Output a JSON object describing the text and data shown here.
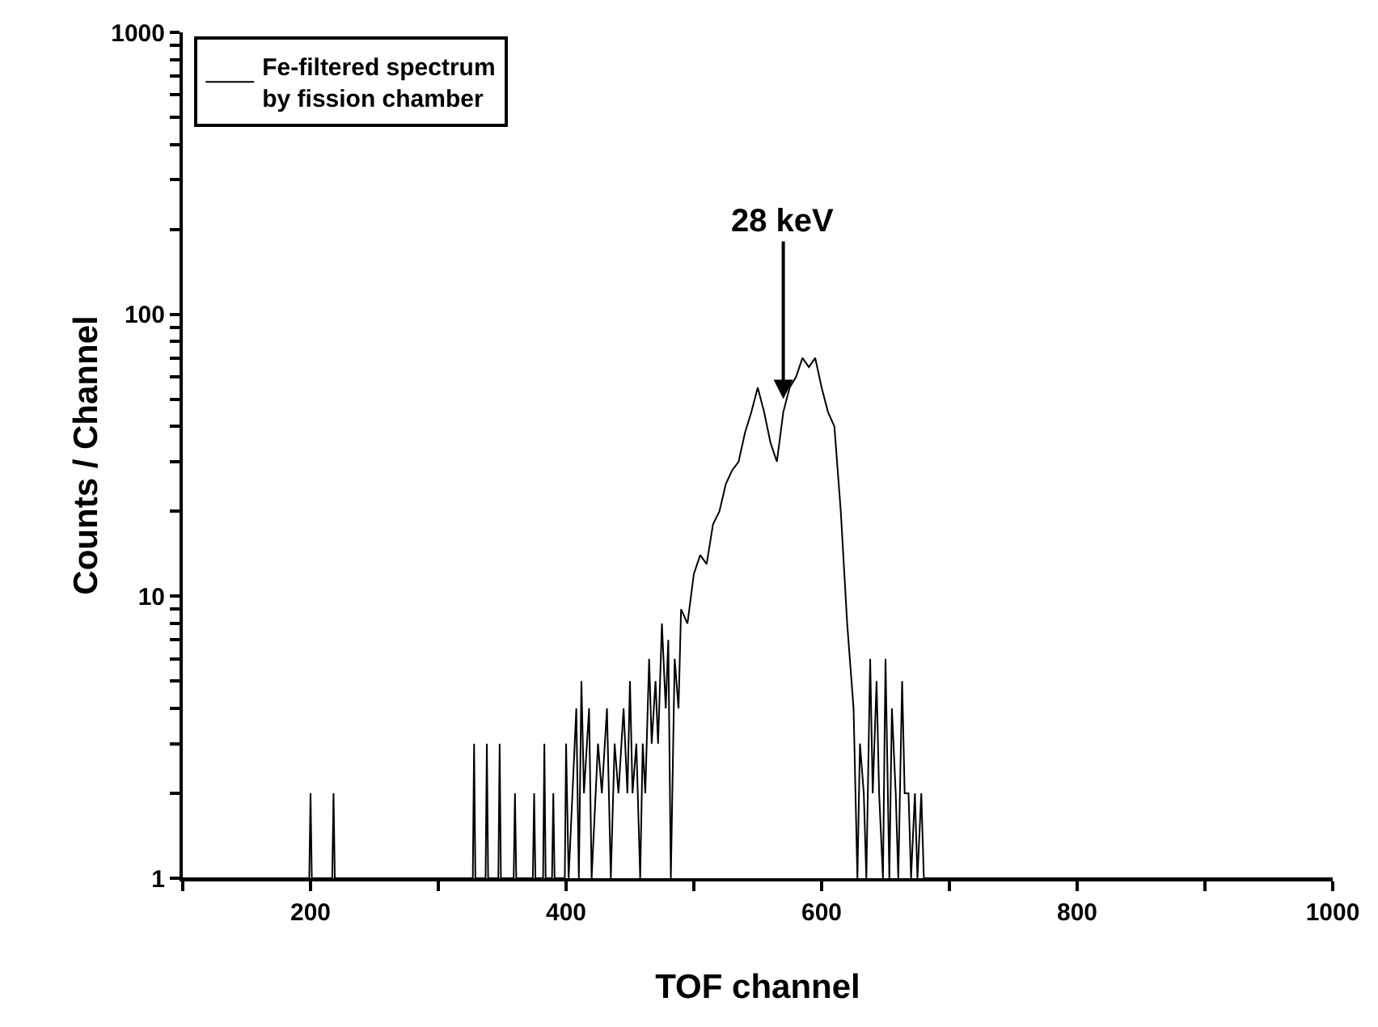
{
  "chart_data": {
    "type": "line",
    "xlabel": "TOF channel",
    "ylabel": "Counts / Channel",
    "log": "y",
    "grid": false,
    "legend": "top left",
    "marker": "none",
    "line_style": "solid",
    "xlim": [
      100,
      1000
    ],
    "xticks": [
      {
        "value": 100,
        "label": null
      },
      200,
      {
        "value": 300,
        "label": null
      },
      400,
      {
        "value": 500,
        "label": null
      },
      600,
      {
        "value": 700,
        "label": null
      },
      800,
      {
        "value": 900,
        "label": null
      },
      1000
    ],
    "ylim": [
      1,
      1000
    ],
    "yticks": [
      1,
      {
        "value": 2,
        "label": null
      },
      {
        "value": 3,
        "label": null
      },
      {
        "value": 4,
        "label": null
      },
      {
        "value": 5,
        "label": null
      },
      {
        "value": 6,
        "label": null
      },
      {
        "value": 7,
        "label": null
      },
      {
        "value": 8,
        "label": null
      },
      {
        "value": 9,
        "label": null
      },
      10,
      {
        "value": 20,
        "label": null
      },
      {
        "value": 30,
        "label": null
      },
      {
        "value": 40,
        "label": null
      },
      {
        "value": 50,
        "label": null
      },
      {
        "value": 60,
        "label": null
      },
      {
        "value": 70,
        "label": null
      },
      {
        "value": 80,
        "label": null
      },
      {
        "value": 90,
        "label": null
      },
      100,
      {
        "value": 200,
        "label": null
      },
      {
        "value": 300,
        "label": null
      },
      {
        "value": 400,
        "label": null
      },
      {
        "value": 500,
        "label": null
      },
      {
        "value": 600,
        "label": null
      },
      {
        "value": 700,
        "label": null
      },
      {
        "value": 800,
        "label": null
      },
      {
        "value": 900,
        "label": null
      },
      1000
    ],
    "annotations": [
      {
        "text": "28 keV",
        "x": 570,
        "y": 50
      }
    ],
    "series": [
      {
        "name": "Fe-filtered spectrum\nby fission chamber",
        "color": "#000000",
        "x": [
          100,
          199,
          200,
          201,
          217,
          218,
          219,
          327,
          328,
          329,
          337,
          338,
          339,
          347,
          348,
          349,
          359,
          360,
          361,
          374,
          375,
          376,
          382,
          383,
          384,
          389,
          390,
          391,
          399,
          400,
          402,
          405,
          408,
          410,
          412,
          414,
          418,
          420,
          425,
          428,
          432,
          435,
          438,
          441,
          445,
          448,
          450,
          452,
          455,
          458,
          460,
          462,
          465,
          467,
          470,
          472,
          475,
          478,
          480,
          482,
          485,
          488,
          490,
          495,
          500,
          505,
          510,
          515,
          520,
          525,
          530,
          535,
          540,
          545,
          550,
          555,
          560,
          565,
          570,
          575,
          580,
          585,
          590,
          595,
          600,
          605,
          610,
          615,
          620,
          625,
          628,
          630,
          633,
          635,
          638,
          640,
          643,
          645,
          648,
          650,
          653,
          655,
          658,
          660,
          663,
          665,
          668,
          670,
          673,
          675,
          678,
          680,
          1000
        ],
        "values": [
          1,
          1,
          2,
          1,
          1,
          2,
          1,
          1,
          3,
          1,
          1,
          3,
          1,
          1,
          3,
          1,
          1,
          2,
          1,
          1,
          2,
          1,
          1,
          3,
          1,
          1,
          2,
          1,
          1,
          3,
          1,
          2,
          4,
          1,
          5,
          2,
          4,
          1,
          3,
          2,
          4,
          1,
          3,
          2,
          4,
          2,
          5,
          2,
          3,
          1,
          3,
          2,
          6,
          3,
          5,
          3,
          8,
          4,
          7,
          1,
          6,
          4,
          9,
          8,
          12,
          14,
          13,
          18,
          20,
          25,
          28,
          30,
          38,
          45,
          55,
          45,
          35,
          30,
          45,
          55,
          60,
          70,
          65,
          70,
          55,
          45,
          40,
          20,
          8,
          4,
          1,
          3,
          2,
          1,
          6,
          2,
          5,
          2,
          1,
          6,
          1,
          4,
          2,
          1,
          5,
          2,
          2,
          1,
          2,
          1,
          2,
          1,
          1
        ]
      }
    ]
  }
}
